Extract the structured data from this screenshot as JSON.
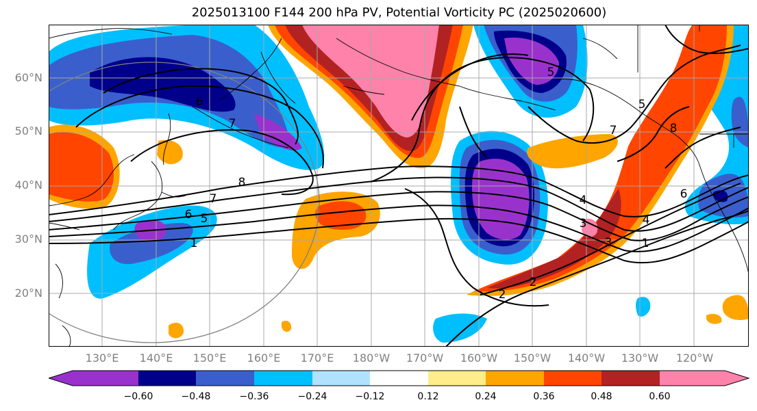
{
  "title": "2025013100 F144 200 hPa PV, Potential Vorticity PC (2025020600)",
  "lat_labels": [
    "60°N",
    "50°N",
    "40°N",
    "30°N",
    "20°N"
  ],
  "lon_labels": [
    "130°E",
    "140°E",
    "150°E",
    "160°E",
    "170°E",
    "180°W",
    "170°W",
    "160°W",
    "150°W",
    "140°W",
    "130°W",
    "120°W"
  ],
  "colorbar": {
    "colors": [
      "#9932cc",
      "#00008b",
      "#3a5fcd",
      "#00bfff",
      "#b0e2ff",
      "#ffffff",
      "#ffec8b",
      "#ffa500",
      "#ff4500",
      "#b22222",
      "#ff82ab"
    ],
    "ticks": [
      "−0.60",
      "−0.48",
      "−0.36",
      "−0.24",
      "−0.12",
      "0.12",
      "0.24",
      "0.36",
      "0.48",
      "0.60"
    ]
  },
  "contour_labels": [
    "1",
    "2",
    "3",
    "4",
    "5",
    "6",
    "7",
    "8",
    "6",
    "5",
    "7",
    "1",
    "2",
    "3",
    "4",
    "6",
    "7",
    "8",
    "5"
  ]
}
